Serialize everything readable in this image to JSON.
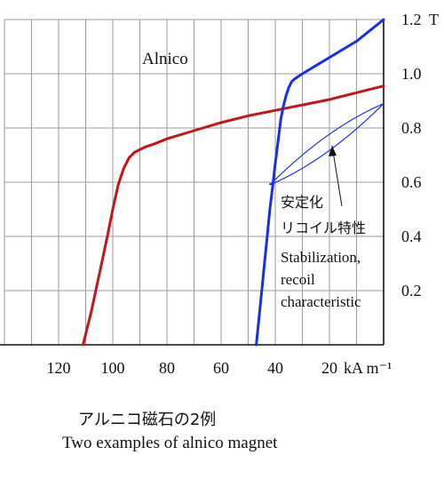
{
  "chart_data": {
    "type": "line",
    "title": "Alnico",
    "x_unit_label": "kA m⁻¹",
    "y_unit_label": "T",
    "xlim": [
      0,
      140
    ],
    "ylim": [
      0,
      1.2
    ],
    "x_reversed": true,
    "grid": true,
    "x_tick_labels": [
      "120",
      "100",
      "80",
      "60",
      "40",
      "20"
    ],
    "x_ticks": [
      120,
      100,
      80,
      60,
      40,
      20
    ],
    "y_tick_labels": [
      "0.2",
      "0.4",
      "0.6",
      "0.8",
      "1.0",
      "1.2"
    ],
    "y_ticks": [
      0.2,
      0.4,
      0.6,
      0.8,
      1.0,
      1.2
    ],
    "series": [
      {
        "color": "#c0161c",
        "x": [
          111,
          108,
          105,
          102,
          100,
          98,
          96,
          94,
          92,
          90,
          88,
          85,
          80,
          70,
          60,
          50,
          40,
          30,
          20,
          10,
          0
        ],
        "y": [
          0.0,
          0.12,
          0.26,
          0.4,
          0.5,
          0.59,
          0.65,
          0.69,
          0.71,
          0.72,
          0.73,
          0.74,
          0.76,
          0.79,
          0.82,
          0.845,
          0.865,
          0.885,
          0.905,
          0.93,
          0.955
        ]
      },
      {
        "color": "#1a2ee8",
        "x": [
          47,
          46,
          45,
          44,
          43,
          42,
          41,
          40,
          39,
          38,
          37,
          36,
          35,
          34,
          33,
          30,
          25,
          20,
          15,
          10,
          5,
          0
        ],
        "y": [
          0.0,
          0.1,
          0.2,
          0.3,
          0.4,
          0.5,
          0.58,
          0.67,
          0.75,
          0.83,
          0.88,
          0.92,
          0.95,
          0.97,
          0.98,
          1.0,
          1.03,
          1.06,
          1.09,
          1.12,
          1.16,
          1.2
        ]
      }
    ],
    "recoil_lines": {
      "color": "#1a2ee8",
      "loops": [
        {
          "from": [
            42,
            0.59
          ],
          "to": [
            0,
            0.89
          ],
          "control_upper": [
            21,
            0.8
          ],
          "control_lower": [
            21,
            0.68
          ]
        }
      ]
    },
    "annotations": {
      "jp_line1": "安定化",
      "jp_line2": "リコイル特性",
      "en_line1": "Stabilization,",
      "en_line2": "recoil",
      "en_line3": "characteristic"
    }
  },
  "caption": {
    "japanese": "アルニコ磁石の2例",
    "english": "Two examples of alnico magnet"
  }
}
